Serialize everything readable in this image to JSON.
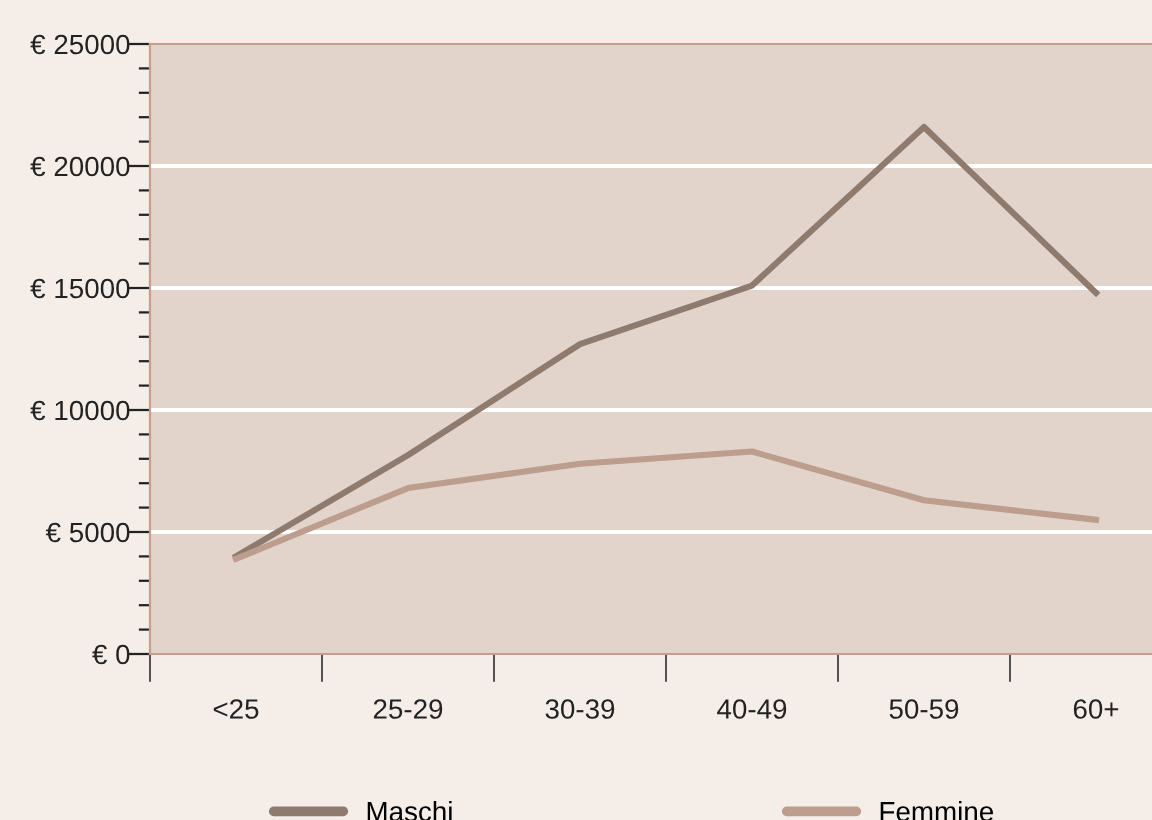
{
  "chart_data": {
    "type": "line",
    "categories": [
      "<25",
      "25-29",
      "30-39",
      "40-49",
      "50-59",
      "60+"
    ],
    "series": [
      {
        "name": "Maschi",
        "color": "#8f7a6e",
        "values": [
          4000,
          8150,
          12700,
          15100,
          21600,
          14800
        ]
      },
      {
        "name": "Femmine",
        "color": "#bc9d8e",
        "values": [
          3900,
          6800,
          7800,
          8300,
          6300,
          5500
        ]
      }
    ],
    "ylim": [
      0,
      25000
    ],
    "yticks": [
      {
        "value": 0,
        "label": "€ 0"
      },
      {
        "value": 1000,
        "label": null
      },
      {
        "value": 2000,
        "label": null
      },
      {
        "value": 3000,
        "label": null
      },
      {
        "value": 4000,
        "label": null
      },
      {
        "value": 5000,
        "label": "€ 5000"
      },
      {
        "value": 6000,
        "label": null
      },
      {
        "value": 7000,
        "label": null
      },
      {
        "value": 8000,
        "label": null
      },
      {
        "value": 9000,
        "label": null
      },
      {
        "value": 10000,
        "label": "€ 10000"
      },
      {
        "value": 11000,
        "label": null
      },
      {
        "value": 12000,
        "label": null
      },
      {
        "value": 13000,
        "label": null
      },
      {
        "value": 14000,
        "label": null
      },
      {
        "value": 15000,
        "label": "€ 15000"
      },
      {
        "value": 16000,
        "label": null
      },
      {
        "value": 17000,
        "label": null
      },
      {
        "value": 18000,
        "label": null
      },
      {
        "value": 19000,
        "label": null
      },
      {
        "value": 20000,
        "label": "€ 20000"
      },
      {
        "value": 21000,
        "label": null
      },
      {
        "value": 22000,
        "label": null
      },
      {
        "value": 23000,
        "label": null
      },
      {
        "value": 24000,
        "label": null
      },
      {
        "value": 25000,
        "label": "€ 25000"
      }
    ],
    "grid": "y",
    "legend": "bottom",
    "marker": "none",
    "line_style": "solid"
  }
}
